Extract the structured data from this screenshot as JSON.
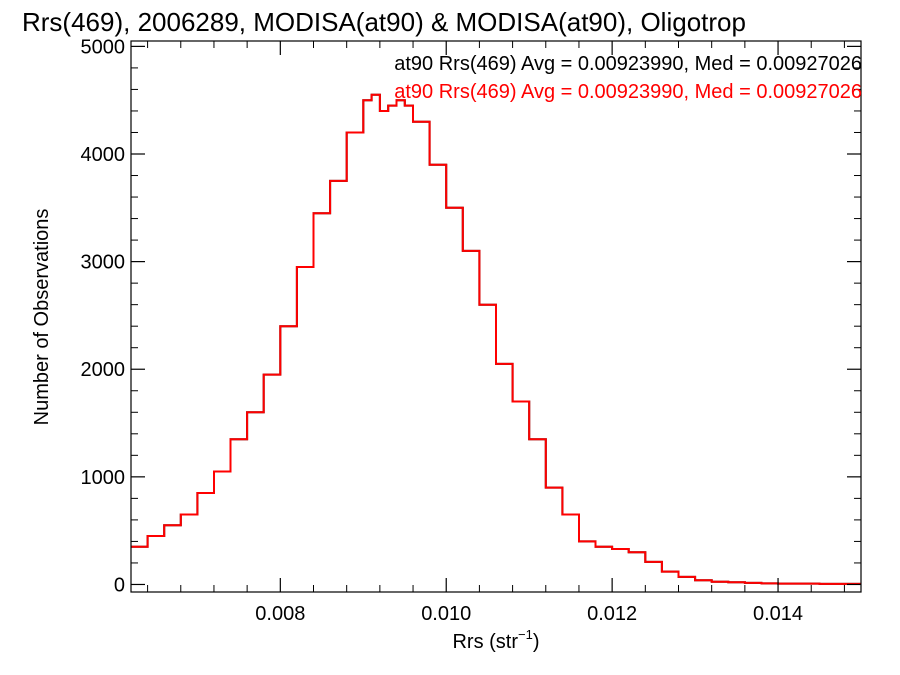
{
  "chart_data": {
    "type": "line",
    "title": "Rrs(469), 2006289, MODISA(at90) & MODISA(at90), Oligotrop",
    "xlabel": "Rrs (str",
    "xlabel_superscript": "−1",
    "xlabel_close": ")",
    "ylabel": "Number of Observations",
    "xlim": [
      0.0062,
      0.015
    ],
    "ylim": [
      -70,
      5050
    ],
    "xticks": [
      0.008,
      0.01,
      0.012,
      0.014
    ],
    "xtick_labels": [
      "0.008",
      "0.010",
      "0.012",
      "0.014"
    ],
    "yticks": [
      0,
      1000,
      2000,
      3000,
      4000,
      5000
    ],
    "ytick_labels": [
      "0",
      "1000",
      "2000",
      "3000",
      "4000",
      "5000"
    ],
    "grid": false,
    "legend_position": "top-right",
    "series": [
      {
        "name": "at90 Rrs(469) Avg = 0.00923990, Med = 0.00927026",
        "color": "#000000",
        "x": [
          0.0062,
          0.0064,
          0.0066,
          0.0068,
          0.007,
          0.0072,
          0.0074,
          0.0076,
          0.0078,
          0.008,
          0.0082,
          0.0084,
          0.0086,
          0.0088,
          0.009,
          0.0091,
          0.0092,
          0.0093,
          0.0094,
          0.0095,
          0.0096,
          0.0098,
          0.01,
          0.0102,
          0.0104,
          0.0106,
          0.0108,
          0.011,
          0.0112,
          0.0114,
          0.0116,
          0.0118,
          0.012,
          0.0122,
          0.0124,
          0.0126,
          0.0128,
          0.013,
          0.0132,
          0.0134,
          0.0136,
          0.0138,
          0.014,
          0.0145,
          0.015
        ],
        "y": [
          350,
          450,
          550,
          650,
          850,
          1050,
          1350,
          1600,
          1950,
          2400,
          2950,
          3450,
          3750,
          4200,
          4500,
          4550,
          4400,
          4450,
          4500,
          4450,
          4300,
          3900,
          3500,
          3100,
          2600,
          2050,
          1700,
          1350,
          900,
          650,
          400,
          350,
          330,
          300,
          210,
          120,
          70,
          40,
          25,
          20,
          15,
          10,
          8,
          5,
          5
        ]
      },
      {
        "name": "at90 Rrs(469) Avg = 0.00923990, Med = 0.00927026",
        "color": "#ff0000",
        "x": [
          0.0062,
          0.0064,
          0.0066,
          0.0068,
          0.007,
          0.0072,
          0.0074,
          0.0076,
          0.0078,
          0.008,
          0.0082,
          0.0084,
          0.0086,
          0.0088,
          0.009,
          0.0091,
          0.0092,
          0.0093,
          0.0094,
          0.0095,
          0.0096,
          0.0098,
          0.01,
          0.0102,
          0.0104,
          0.0106,
          0.0108,
          0.011,
          0.0112,
          0.0114,
          0.0116,
          0.0118,
          0.012,
          0.0122,
          0.0124,
          0.0126,
          0.0128,
          0.013,
          0.0132,
          0.0134,
          0.0136,
          0.0138,
          0.014,
          0.0145,
          0.015
        ],
        "y": [
          350,
          450,
          550,
          650,
          850,
          1050,
          1350,
          1600,
          1950,
          2400,
          2950,
          3450,
          3750,
          4200,
          4500,
          4550,
          4400,
          4450,
          4500,
          4450,
          4300,
          3900,
          3500,
          3100,
          2600,
          2050,
          1700,
          1350,
          900,
          650,
          400,
          350,
          330,
          300,
          210,
          120,
          70,
          40,
          25,
          20,
          15,
          10,
          8,
          5,
          5
        ]
      }
    ]
  }
}
